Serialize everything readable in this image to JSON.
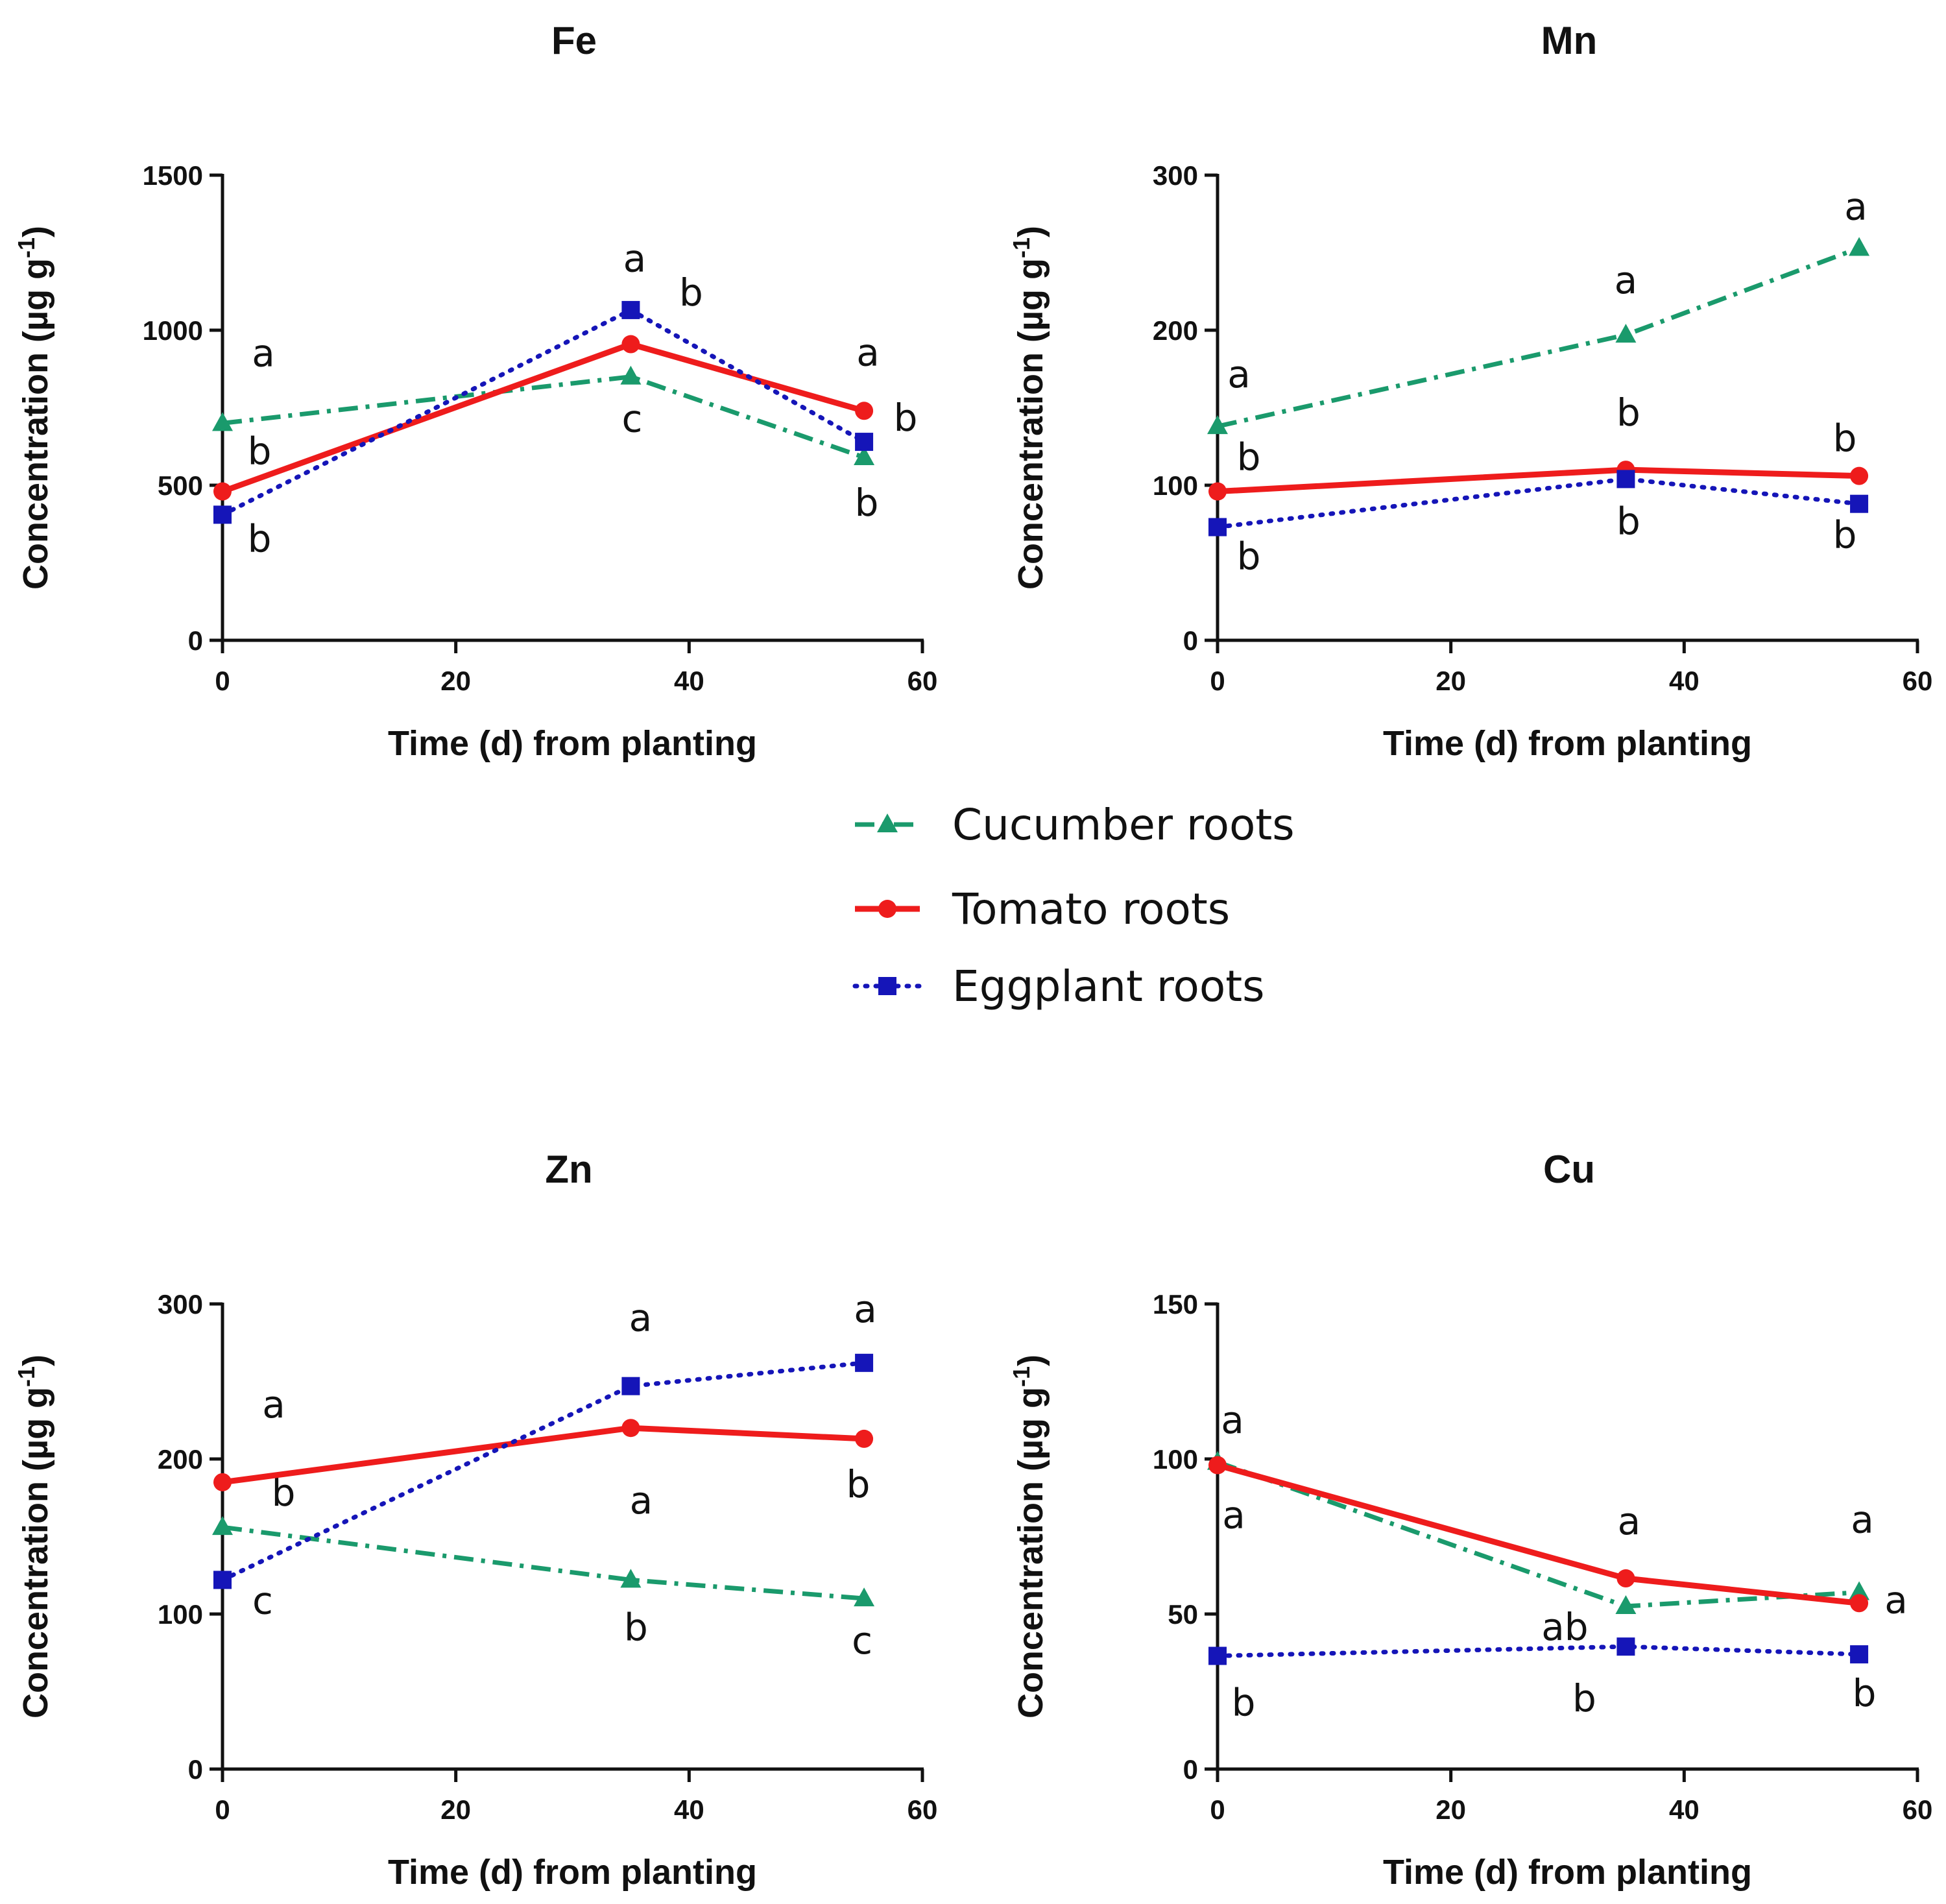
{
  "legend": [
    {
      "series": "cucumber",
      "label": "Cucumber roots"
    },
    {
      "series": "tomato",
      "label": "Tomato roots"
    },
    {
      "series": "eggplant",
      "label": "Eggplant roots"
    }
  ],
  "styles": {
    "cucumber": {
      "color": "#1a9a6c",
      "dash": "dashdot",
      "marker": "triangle"
    },
    "tomato": {
      "color": "#ee1c1c",
      "dash": "solid",
      "marker": "circle"
    },
    "eggplant": {
      "color": "#1515b8",
      "dash": "dotted",
      "marker": "square"
    }
  },
  "chart_data": [
    {
      "type": "line",
      "title": "Fe",
      "xlabel": "Time (d) from planting",
      "ylabel": "Concentration (µg g-1)",
      "xlim": [
        0,
        60
      ],
      "ylim": [
        0,
        1500
      ],
      "xticks": [
        0,
        20,
        40,
        60
      ],
      "yticks": [
        0,
        500,
        1000,
        1500
      ],
      "x": [
        0,
        35,
        55
      ],
      "series": [
        {
          "key": "cucumber",
          "name": "Cucumber roots",
          "values": [
            700,
            850,
            590
          ],
          "letters": [
            "a",
            "c",
            "b"
          ]
        },
        {
          "key": "tomato",
          "name": "Tomato roots",
          "values": [
            480,
            955,
            740
          ],
          "letters": [
            "b",
            "a",
            "a"
          ]
        },
        {
          "key": "eggplant",
          "name": "Eggplant roots",
          "values": [
            405,
            1065,
            640
          ],
          "letters": [
            "b",
            "b",
            "b"
          ]
        }
      ]
    },
    {
      "type": "line",
      "title": "Mn",
      "xlabel": "Time (d) from planting",
      "ylabel": "Concentration (µg g-1)",
      "xlim": [
        0,
        60
      ],
      "ylim": [
        0,
        300
      ],
      "xticks": [
        0,
        20,
        40,
        60
      ],
      "yticks": [
        0,
        100,
        200,
        300
      ],
      "x": [
        0,
        35,
        55
      ],
      "series": [
        {
          "key": "cucumber",
          "name": "Cucumber roots",
          "values": [
            138,
            197,
            253
          ],
          "letters": [
            "a",
            "a",
            "a"
          ]
        },
        {
          "key": "tomato",
          "name": "Tomato roots",
          "values": [
            96,
            110,
            106
          ],
          "letters": [
            "b",
            "b",
            "b"
          ]
        },
        {
          "key": "eggplant",
          "name": "Eggplant roots",
          "values": [
            73,
            104,
            88
          ],
          "letters": [
            "b",
            "b",
            "b"
          ]
        }
      ]
    },
    {
      "type": "line",
      "title": "Zn",
      "xlabel": "Time (d) from planting",
      "ylabel": "Concentration (µg g-1)",
      "xlim": [
        0,
        60
      ],
      "ylim": [
        0,
        300
      ],
      "xticks": [
        0,
        20,
        40,
        60
      ],
      "yticks": [
        0,
        100,
        200,
        300
      ],
      "x": [
        0,
        35,
        55
      ],
      "series": [
        {
          "key": "cucumber",
          "name": "Cucumber roots",
          "values": [
            156,
            122,
            110
          ],
          "letters": [
            "b",
            "b",
            "c"
          ]
        },
        {
          "key": "tomato",
          "name": "Tomato roots",
          "values": [
            185,
            220,
            213
          ],
          "letters": [
            "a",
            "a",
            "b"
          ]
        },
        {
          "key": "eggplant",
          "name": "Eggplant roots",
          "values": [
            122,
            247,
            262
          ],
          "letters": [
            "c",
            "a",
            "a"
          ]
        }
      ]
    },
    {
      "type": "line",
      "title": "Cu",
      "xlabel": "Time (d) from planting",
      "ylabel": "Concentration (µg g-1)",
      "xlim": [
        0,
        60
      ],
      "ylim": [
        0,
        150
      ],
      "xticks": [
        0,
        20,
        40,
        60
      ],
      "yticks": [
        0,
        50,
        100,
        150
      ],
      "x": [
        0,
        35,
        55
      ],
      "series": [
        {
          "key": "cucumber",
          "name": "Cucumber roots",
          "values": [
            99,
            52.5,
            57
          ],
          "letters": [
            "a",
            "ab",
            "a"
          ]
        },
        {
          "key": "tomato",
          "name": "Tomato roots",
          "values": [
            98,
            61.5,
            53.5
          ],
          "letters": [
            "a",
            "a",
            "a"
          ]
        },
        {
          "key": "eggplant",
          "name": "Eggplant roots",
          "values": [
            36.5,
            39.5,
            37
          ],
          "letters": [
            "b",
            "b",
            "b"
          ]
        }
      ]
    }
  ]
}
